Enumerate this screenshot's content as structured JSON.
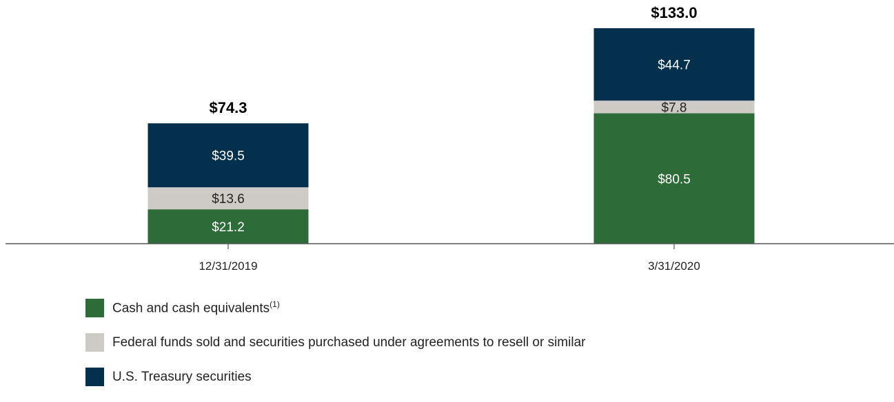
{
  "chart_data": {
    "type": "bar",
    "stacked": true,
    "categories": [
      "12/31/2019",
      "3/31/2020"
    ],
    "totals": [
      "$74.3",
      "$133.0"
    ],
    "series": [
      {
        "name": "Cash and cash equivalents",
        "name_sup": "(1)",
        "color": "#2d6b38",
        "values": [
          21.2,
          80.5
        ],
        "labels": [
          "$21.2",
          "$80.5"
        ]
      },
      {
        "name": "Federal funds sold and securities purchased under agreements to resell or similar",
        "name_sup": "",
        "color": "#cecbc6",
        "values": [
          13.6,
          7.8
        ],
        "labels": [
          "$13.6",
          "$7.8"
        ]
      },
      {
        "name": "U.S. Treasury securities",
        "name_sup": "",
        "color": "#05304d",
        "values": [
          39.5,
          44.7
        ],
        "labels": [
          "$39.5",
          "$44.7"
        ]
      }
    ],
    "ylim": [
      0,
      133.0
    ],
    "grid": false,
    "legend_position": "bottom-left"
  }
}
